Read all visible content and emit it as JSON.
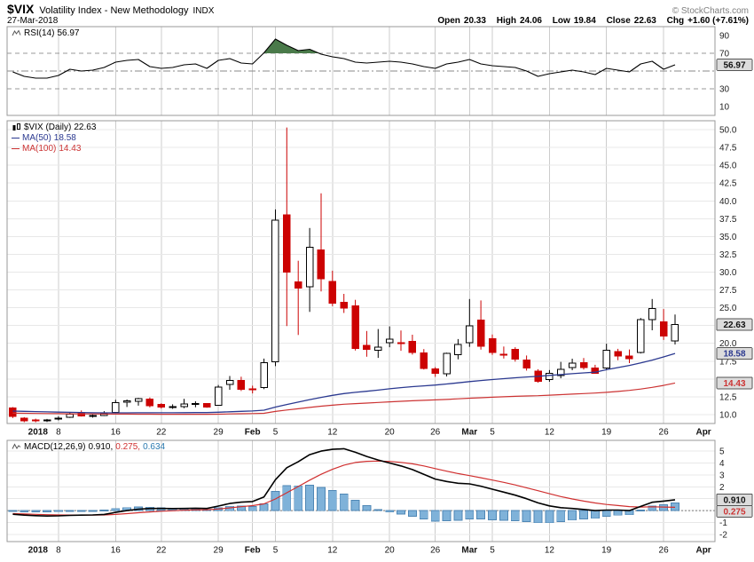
{
  "header": {
    "symbol": "$VIX",
    "title": "Volatility Index - New Methodology",
    "exchange": "INDX",
    "copyright": "© StockCharts.com",
    "date": "27-Mar-2018",
    "quote": {
      "open_label": "Open",
      "open": "20.33",
      "high_label": "High",
      "high": "24.06",
      "low_label": "Low",
      "low": "19.84",
      "close_label": "Close",
      "close": "22.63",
      "chg_label": "Chg",
      "chg": "+1.60 (+7.61%)"
    }
  },
  "legends": {
    "rsi": {
      "label": "RSI(14)",
      "value": "56.97"
    },
    "price": {
      "label": "$VIX (Daily)",
      "value": "22.63"
    },
    "ma50": {
      "label": "MA(50)",
      "value": "18.58"
    },
    "ma100": {
      "label": "MA(100)",
      "value": "14.43"
    },
    "macd": {
      "label": "MACD(12,26,9)",
      "v1": "0.910,",
      "v2": "0.275,",
      "v3": "0.634"
    }
  },
  "colors": {
    "candle_up_fill": "#ffffff",
    "candle_up_stroke": "#000000",
    "candle_down": "#cc0202",
    "ma50": "#2b3990",
    "ma100": "#cc3333",
    "rsi_line": "#000000",
    "rsi_fill": "#4a7a4a",
    "macd_line": "#000000",
    "macd_signal": "#d03030",
    "macd_hist_fill": "#7fb2d9",
    "macd_hist_stroke": "#4f87b5",
    "macd_hist_legend": "#2a7ab0",
    "grid_v": "#cccccc",
    "grid_h": "#e8e8e8",
    "panel_border": "#999999",
    "badge_bg": "#dcdcdc",
    "badge_border": "#555555"
  },
  "x_axis": {
    "ticks": [
      {
        "label": "2018",
        "i": 2.2,
        "bold": true,
        "grid": false
      },
      {
        "label": "8",
        "i": 4,
        "bold": false,
        "grid": true
      },
      {
        "label": "16",
        "i": 9,
        "bold": false,
        "grid": true
      },
      {
        "label": "22",
        "i": 13,
        "bold": false,
        "grid": true
      },
      {
        "label": "29",
        "i": 18,
        "bold": false,
        "grid": true
      },
      {
        "label": "Feb",
        "i": 21,
        "bold": true,
        "grid": true
      },
      {
        "label": "5",
        "i": 23,
        "bold": false,
        "grid": true
      },
      {
        "label": "12",
        "i": 28,
        "bold": false,
        "grid": true
      },
      {
        "label": "20",
        "i": 33,
        "bold": false,
        "grid": true
      },
      {
        "label": "26",
        "i": 37,
        "bold": false,
        "grid": true
      },
      {
        "label": "Mar",
        "i": 40,
        "bold": true,
        "grid": true
      },
      {
        "label": "5",
        "i": 42,
        "bold": false,
        "grid": true
      },
      {
        "label": "12",
        "i": 47,
        "bold": false,
        "grid": true
      },
      {
        "label": "19",
        "i": 52,
        "bold": false,
        "grid": true
      },
      {
        "label": "26",
        "i": 57,
        "bold": false,
        "grid": true
      },
      {
        "label": "Apr",
        "i": 60.5,
        "bold": true,
        "grid": false
      }
    ]
  },
  "chart_data": [
    {
      "id": "rsi",
      "type": "line",
      "title": "RSI(14)",
      "current_value": 56.97,
      "ylim": [
        0,
        100
      ],
      "yticks": [
        90,
        70,
        30,
        10
      ],
      "overbought": 70,
      "oversold": 30,
      "midline": 50,
      "legend_position": "top-left",
      "values": [
        49,
        44,
        42,
        42,
        45,
        52,
        50,
        51,
        54,
        60,
        62,
        63,
        55,
        53,
        54,
        57,
        58,
        53,
        62,
        64,
        59,
        58,
        70.5,
        86,
        79,
        73,
        74.5,
        69,
        66,
        64,
        60,
        59,
        60,
        61,
        60,
        58,
        55,
        53,
        58,
        60,
        63,
        58,
        56,
        55,
        54,
        50,
        44,
        47,
        49,
        51,
        49,
        46,
        53,
        51,
        49,
        58,
        61,
        52,
        56.97
      ],
      "badges": [
        {
          "v": 56.97,
          "label": "56.97",
          "color": "#111111"
        }
      ]
    },
    {
      "id": "price",
      "type": "candlestick",
      "title": "$VIX (Daily)",
      "close": 22.63,
      "ylim": [
        8.75,
        51.25
      ],
      "yticks": [
        10,
        12.5,
        17.5,
        20,
        25,
        27.5,
        30,
        32.5,
        35,
        37.5,
        40,
        42.5,
        45,
        47.5,
        50
      ],
      "grid_values": [
        10,
        12.5,
        15,
        17.5,
        20,
        22.5,
        25,
        27.5,
        30,
        32.5,
        35,
        37.5,
        40,
        42.5,
        45,
        47.5,
        50
      ],
      "dates": [
        "Jan 2",
        "Jan 3",
        "Jan 4",
        "Jan 5",
        "Jan 8",
        "Jan 9",
        "Jan 10",
        "Jan 11",
        "Jan 12",
        "Jan 16",
        "Jan 17",
        "Jan 18",
        "Jan 19",
        "Jan 22",
        "Jan 23",
        "Jan 24",
        "Jan 25",
        "Jan 26",
        "Jan 29",
        "Jan 30",
        "Jan 31",
        "Feb 1",
        "Feb 2",
        "Feb 5",
        "Feb 6",
        "Feb 7",
        "Feb 8",
        "Feb 9",
        "Feb 12",
        "Feb 13",
        "Feb 14",
        "Feb 15",
        "Feb 16",
        "Feb 20",
        "Feb 21",
        "Feb 22",
        "Feb 23",
        "Feb 26",
        "Feb 27",
        "Feb 28",
        "Mar 1",
        "Mar 2",
        "Mar 5",
        "Mar 6",
        "Mar 7",
        "Mar 8",
        "Mar 9",
        "Mar 12",
        "Mar 13",
        "Mar 14",
        "Mar 15",
        "Mar 16",
        "Mar 19",
        "Mar 20",
        "Mar 21",
        "Mar 22",
        "Mar 23",
        "Mar 26",
        "Mar 27"
      ],
      "candles": [
        [
          10.95,
          11.05,
          9.52,
          9.77
        ],
        [
          9.5,
          9.65,
          8.94,
          9.15
        ],
        [
          9.24,
          9.42,
          8.92,
          9.22
        ],
        [
          9.22,
          9.39,
          8.96,
          9.22
        ],
        [
          9.4,
          9.76,
          9.19,
          9.52
        ],
        [
          9.62,
          10.26,
          9.54,
          10.08
        ],
        [
          10.21,
          10.58,
          9.72,
          9.82
        ],
        [
          9.79,
          10.01,
          9.57,
          9.88
        ],
        [
          9.87,
          10.48,
          9.8,
          10.16
        ],
        [
          10.32,
          12.08,
          10.23,
          11.66
        ],
        [
          11.71,
          12.13,
          11.07,
          11.91
        ],
        [
          11.88,
          12.35,
          11.26,
          12.22
        ],
        [
          12.2,
          12.4,
          11.02,
          11.27
        ],
        [
          11.45,
          11.59,
          10.85,
          11.03
        ],
        [
          11.06,
          11.44,
          10.81,
          11.1
        ],
        [
          11.13,
          12.2,
          10.9,
          11.47
        ],
        [
          11.55,
          11.86,
          11.03,
          11.58
        ],
        [
          11.54,
          11.62,
          10.95,
          11.08
        ],
        [
          11.29,
          14.16,
          11.24,
          13.84
        ],
        [
          14.24,
          15.42,
          13.48,
          14.79
        ],
        [
          14.8,
          15.32,
          13.31,
          13.54
        ],
        [
          13.62,
          14.06,
          12.97,
          13.47
        ],
        [
          13.81,
          17.86,
          13.57,
          17.31
        ],
        [
          17.44,
          38.8,
          16.8,
          37.32
        ],
        [
          38.01,
          50.3,
          22.42,
          29.98
        ],
        [
          28.63,
          31.6,
          21.17,
          27.73
        ],
        [
          27.93,
          36.2,
          24.42,
          33.46
        ],
        [
          33.14,
          41.06,
          27.29,
          29.06
        ],
        [
          28.68,
          30.2,
          25.23,
          25.61
        ],
        [
          25.78,
          26.95,
          24.27,
          24.97
        ],
        [
          25.29,
          26.11,
          19.0,
          19.26
        ],
        [
          19.7,
          21.74,
          18.12,
          19.13
        ],
        [
          19.02,
          22.01,
          17.96,
          19.46
        ],
        [
          20.11,
          22.38,
          19.46,
          20.6
        ],
        [
          20.1,
          21.81,
          18.96,
          20.02
        ],
        [
          20.3,
          21.21,
          18.42,
          18.72
        ],
        [
          18.63,
          19.2,
          16.33,
          16.49
        ],
        [
          16.41,
          16.67,
          15.31,
          15.8
        ],
        [
          15.73,
          18.69,
          15.36,
          18.59
        ],
        [
          18.42,
          20.6,
          17.76,
          19.85
        ],
        [
          20.1,
          26.22,
          19.5,
          22.47
        ],
        [
          23.25,
          26.03,
          19.12,
          19.59
        ],
        [
          20.67,
          21.24,
          18.38,
          18.73
        ],
        [
          18.46,
          19.55,
          17.87,
          18.36
        ],
        [
          19.13,
          19.46,
          17.44,
          17.76
        ],
        [
          17.66,
          18.3,
          16.18,
          16.54
        ],
        [
          16.11,
          16.36,
          14.48,
          14.64
        ],
        [
          14.91,
          16.25,
          14.61,
          15.78
        ],
        [
          15.45,
          17.4,
          15.1,
          16.35
        ],
        [
          16.61,
          17.85,
          16.23,
          17.23
        ],
        [
          17.31,
          17.93,
          16.33,
          16.59
        ],
        [
          16.57,
          16.99,
          15.73,
          15.8
        ],
        [
          16.52,
          19.95,
          16.22,
          19.02
        ],
        [
          18.84,
          19.23,
          17.64,
          18.2
        ],
        [
          18.23,
          19.15,
          17.23,
          17.86
        ],
        [
          18.74,
          23.56,
          18.58,
          23.34
        ],
        [
          23.33,
          26.22,
          21.84,
          24.87
        ],
        [
          23.01,
          24.81,
          20.48,
          21.03
        ],
        [
          20.33,
          24.06,
          19.84,
          22.63
        ]
      ],
      "ma50": [
        10.5,
        10.46,
        10.42,
        10.38,
        10.35,
        10.32,
        10.29,
        10.26,
        10.24,
        10.24,
        10.25,
        10.26,
        10.26,
        10.26,
        10.26,
        10.27,
        10.28,
        10.28,
        10.33,
        10.4,
        10.46,
        10.51,
        10.62,
        11.05,
        11.42,
        11.75,
        12.1,
        12.42,
        12.7,
        12.95,
        13.12,
        13.28,
        13.44,
        13.62,
        13.78,
        13.92,
        14.04,
        14.15,
        14.3,
        14.46,
        14.63,
        14.78,
        14.92,
        15.05,
        15.17,
        15.28,
        15.37,
        15.5,
        15.62,
        15.74,
        15.85,
        15.96,
        16.3,
        16.6,
        16.9,
        17.25,
        17.65,
        18.1,
        18.58
      ],
      "ma100": [
        10.2,
        10.18,
        10.16,
        10.14,
        10.13,
        10.11,
        10.1,
        10.09,
        10.08,
        10.07,
        10.07,
        10.06,
        10.06,
        10.05,
        10.05,
        10.05,
        10.05,
        10.04,
        10.06,
        10.09,
        10.12,
        10.14,
        10.18,
        10.45,
        10.65,
        10.82,
        11.0,
        11.18,
        11.32,
        11.45,
        11.54,
        11.62,
        11.7,
        11.79,
        11.87,
        11.94,
        12.0,
        12.06,
        12.13,
        12.21,
        12.3,
        12.37,
        12.44,
        12.5,
        12.56,
        12.61,
        12.65,
        12.72,
        12.8,
        12.88,
        12.95,
        13.02,
        13.12,
        13.25,
        13.4,
        13.58,
        13.82,
        14.1,
        14.43
      ],
      "badges": [
        {
          "v": 22.63,
          "label": "22.63",
          "color": "#111111"
        },
        {
          "v": 18.58,
          "label": "18.58",
          "color": "#2b3990"
        },
        {
          "v": 14.43,
          "label": "14.43",
          "color": "#cc3333"
        }
      ]
    },
    {
      "id": "macd",
      "type": "macd",
      "title": "MACD(12,26,9)",
      "macd_value": 0.91,
      "signal_value": 0.275,
      "hist_value": 0.634,
      "ylim": [
        -2.6,
        5.9
      ],
      "yticks": [
        5,
        4,
        3,
        2,
        1,
        0,
        -1,
        -2
      ],
      "grid_values": [
        5,
        4,
        3,
        2,
        1,
        0,
        -1,
        -2
      ],
      "macd": [
        -0.3,
        -0.38,
        -0.42,
        -0.45,
        -0.44,
        -0.4,
        -0.38,
        -0.36,
        -0.32,
        -0.15,
        0.0,
        0.12,
        0.18,
        0.18,
        0.17,
        0.18,
        0.2,
        0.18,
        0.38,
        0.6,
        0.71,
        0.76,
        1.15,
        2.6,
        3.6,
        4.1,
        4.7,
        5.0,
        5.15,
        5.2,
        4.9,
        4.55,
        4.25,
        4.0,
        3.75,
        3.45,
        3.05,
        2.65,
        2.45,
        2.3,
        2.25,
        2.05,
        1.8,
        1.55,
        1.3,
        1.0,
        0.65,
        0.4,
        0.25,
        0.18,
        0.1,
        0.0,
        0.05,
        0.05,
        0.0,
        0.35,
        0.7,
        0.8,
        0.91
      ],
      "signal": [
        -0.25,
        -0.28,
        -0.31,
        -0.34,
        -0.36,
        -0.37,
        -0.37,
        -0.37,
        -0.36,
        -0.32,
        -0.25,
        -0.18,
        -0.11,
        -0.05,
        -0.01,
        0.03,
        0.06,
        0.08,
        0.14,
        0.23,
        0.33,
        0.42,
        0.57,
        0.98,
        1.5,
        2.02,
        2.56,
        3.05,
        3.47,
        3.82,
        4.04,
        4.14,
        4.16,
        4.13,
        4.05,
        3.93,
        3.75,
        3.53,
        3.31,
        3.11,
        2.94,
        2.76,
        2.57,
        2.37,
        2.16,
        1.92,
        1.67,
        1.42,
        1.18,
        0.98,
        0.8,
        0.64,
        0.52,
        0.43,
        0.34,
        0.3,
        0.32,
        0.3,
        0.275
      ],
      "badges": [
        {
          "v": 0.91,
          "label": "0.910",
          "color": "#111111"
        },
        {
          "v": 0.275,
          "label": "0.275",
          "color": "#cc3333"
        }
      ]
    }
  ]
}
